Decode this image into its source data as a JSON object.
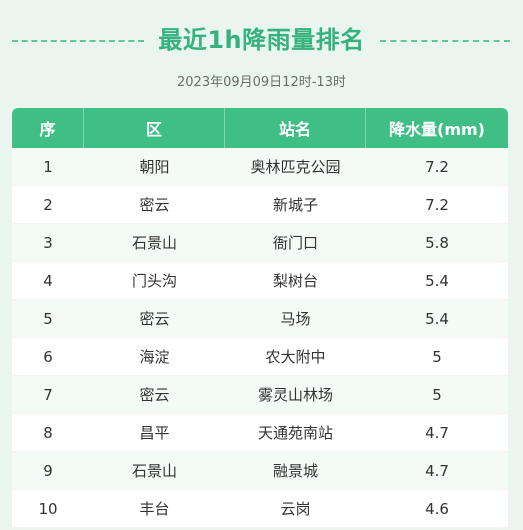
{
  "header": {
    "title": "最近1h降雨量排名",
    "subtitle": "2023年09月09日12时-13时"
  },
  "table": {
    "columns": [
      "序",
      "区",
      "站名",
      "降水量(mm)"
    ],
    "rows": [
      {
        "rank": "1",
        "district": "朝阳",
        "station": "奥林匹克公园",
        "rainfall": "7.2"
      },
      {
        "rank": "2",
        "district": "密云",
        "station": "新城子",
        "rainfall": "7.2"
      },
      {
        "rank": "3",
        "district": "石景山",
        "station": "衙门口",
        "rainfall": "5.8"
      },
      {
        "rank": "4",
        "district": "门头沟",
        "station": "梨树台",
        "rainfall": "5.4"
      },
      {
        "rank": "5",
        "district": "密云",
        "station": "马场",
        "rainfall": "5.4"
      },
      {
        "rank": "6",
        "district": "海淀",
        "station": "农大附中",
        "rainfall": "5"
      },
      {
        "rank": "7",
        "district": "密云",
        "station": "雾灵山林场",
        "rainfall": "5"
      },
      {
        "rank": "8",
        "district": "昌平",
        "station": "天通苑南站",
        "rainfall": "4.7"
      },
      {
        "rank": "9",
        "district": "石景山",
        "station": "融景城",
        "rainfall": "4.7"
      },
      {
        "rank": "10",
        "district": "丰台",
        "station": "云岗",
        "rainfall": "4.6"
      }
    ]
  },
  "colors": {
    "accent": "#3fbf86",
    "title": "#36b27e",
    "background": "#eaf5f0"
  }
}
